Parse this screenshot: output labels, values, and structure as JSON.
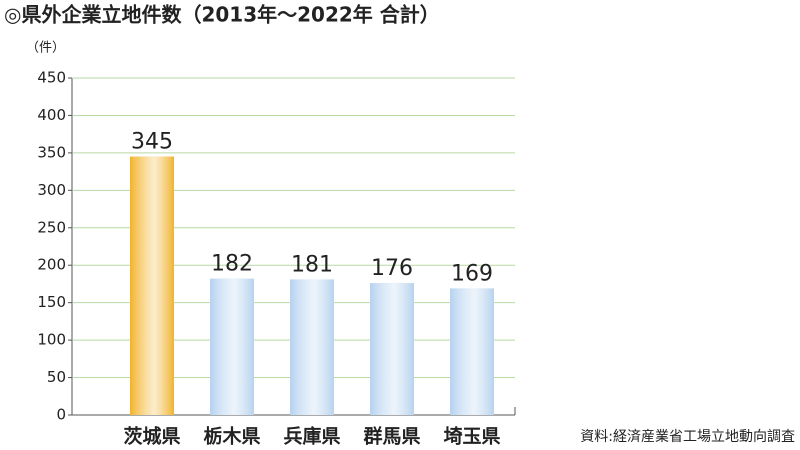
{
  "chart_data": {
    "type": "bar",
    "title": "◎県外企業立地件数（2013年～2022年 合計）",
    "y_unit": "（件）",
    "source": "資料:経済産業省工場立地動向調査",
    "categories": [
      "茨城県",
      "栃木県",
      "兵庫県",
      "群馬県",
      "埼玉県"
    ],
    "values": [
      345,
      182,
      181,
      176,
      169
    ],
    "colors": [
      "#f2b32c",
      "#b7d2ef",
      "#b7d2ef",
      "#b7d2ef",
      "#b7d2ef"
    ],
    "label_colors": [
      "#e0141e",
      "#222222",
      "#222222",
      "#222222",
      "#222222"
    ],
    "ylim": [
      0,
      450
    ],
    "yticks": [
      0,
      50,
      100,
      150,
      200,
      250,
      300,
      350,
      400,
      450
    ],
    "grid": true,
    "grid_color": "#b9d9a5"
  }
}
